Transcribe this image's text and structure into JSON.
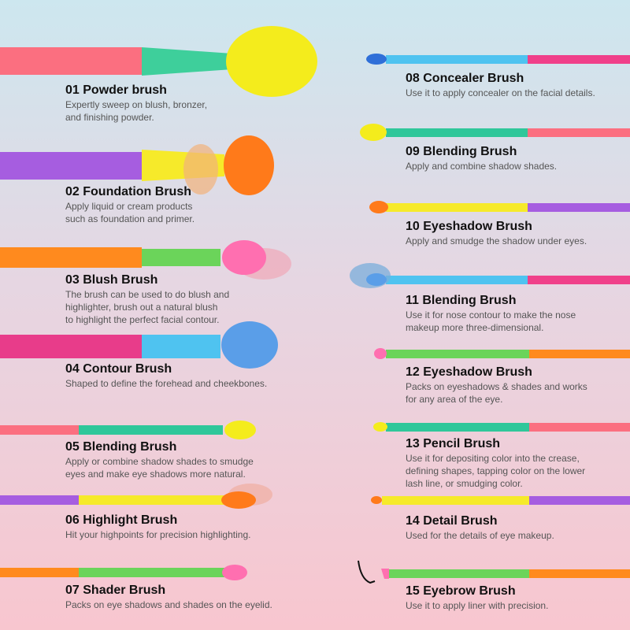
{
  "brushes": [
    {
      "title": "01 Powder brush",
      "description": [
        "Expertly sweep on blush, bronzer,",
        "and finishing powder."
      ]
    },
    {
      "title": "02 Foundation Brush",
      "description": [
        "Apply liquid or cream products",
        "such as foundation and primer."
      ]
    },
    {
      "title": "03 Blush Brush",
      "description": [
        "The brush can be used to do blush and",
        "highlighter, brush out a natural blush",
        "to highlight the perfect facial contour."
      ]
    },
    {
      "title": "04 Contour Brush",
      "description": [
        "Shaped to define the forehead and cheekbones."
      ]
    },
    {
      "title": "05 Blending Brush",
      "description": [
        "Apply or combine shadow shades to smudge",
        "eyes and make eye shadows more natural."
      ]
    },
    {
      "title": "06 Highlight Brush",
      "description": [
        "Hit your highpoints for precision highlighting."
      ]
    },
    {
      "title": "07 Shader Brush",
      "description": [
        "Packs on eye shadows and shades on the eyelid."
      ]
    },
    {
      "title": "08 Concealer Brush",
      "description": [
        "Use it to apply concealer on the facial details."
      ]
    },
    {
      "title": "09 Blending Brush",
      "description": [
        "Apply and combine shadow shades."
      ]
    },
    {
      "title": "10 Eyeshadow Brush",
      "description": [
        "Apply and smudge the shadow under eyes."
      ]
    },
    {
      "title": "11 Blending Brush",
      "description": [
        "Use it for nose contour to make the nose",
        "makeup more three-dimensional."
      ]
    },
    {
      "title": "12 Eyeshadow Brush",
      "description": [
        "Packs on eyeshadows & shades and works",
        "for any area of the eye."
      ]
    },
    {
      "title": "13 Pencil Brush",
      "description": [
        "Use it for depositing color into the crease,",
        "defining shapes, tapping color on the lower",
        "lash line, or smudging color."
      ]
    },
    {
      "title": "14 Detail Brush",
      "description": [
        "Used for the details of eye makeup."
      ]
    },
    {
      "title": "15 Eyebrow Brush",
      "description": [
        "Use it to apply liner with precision."
      ]
    }
  ]
}
